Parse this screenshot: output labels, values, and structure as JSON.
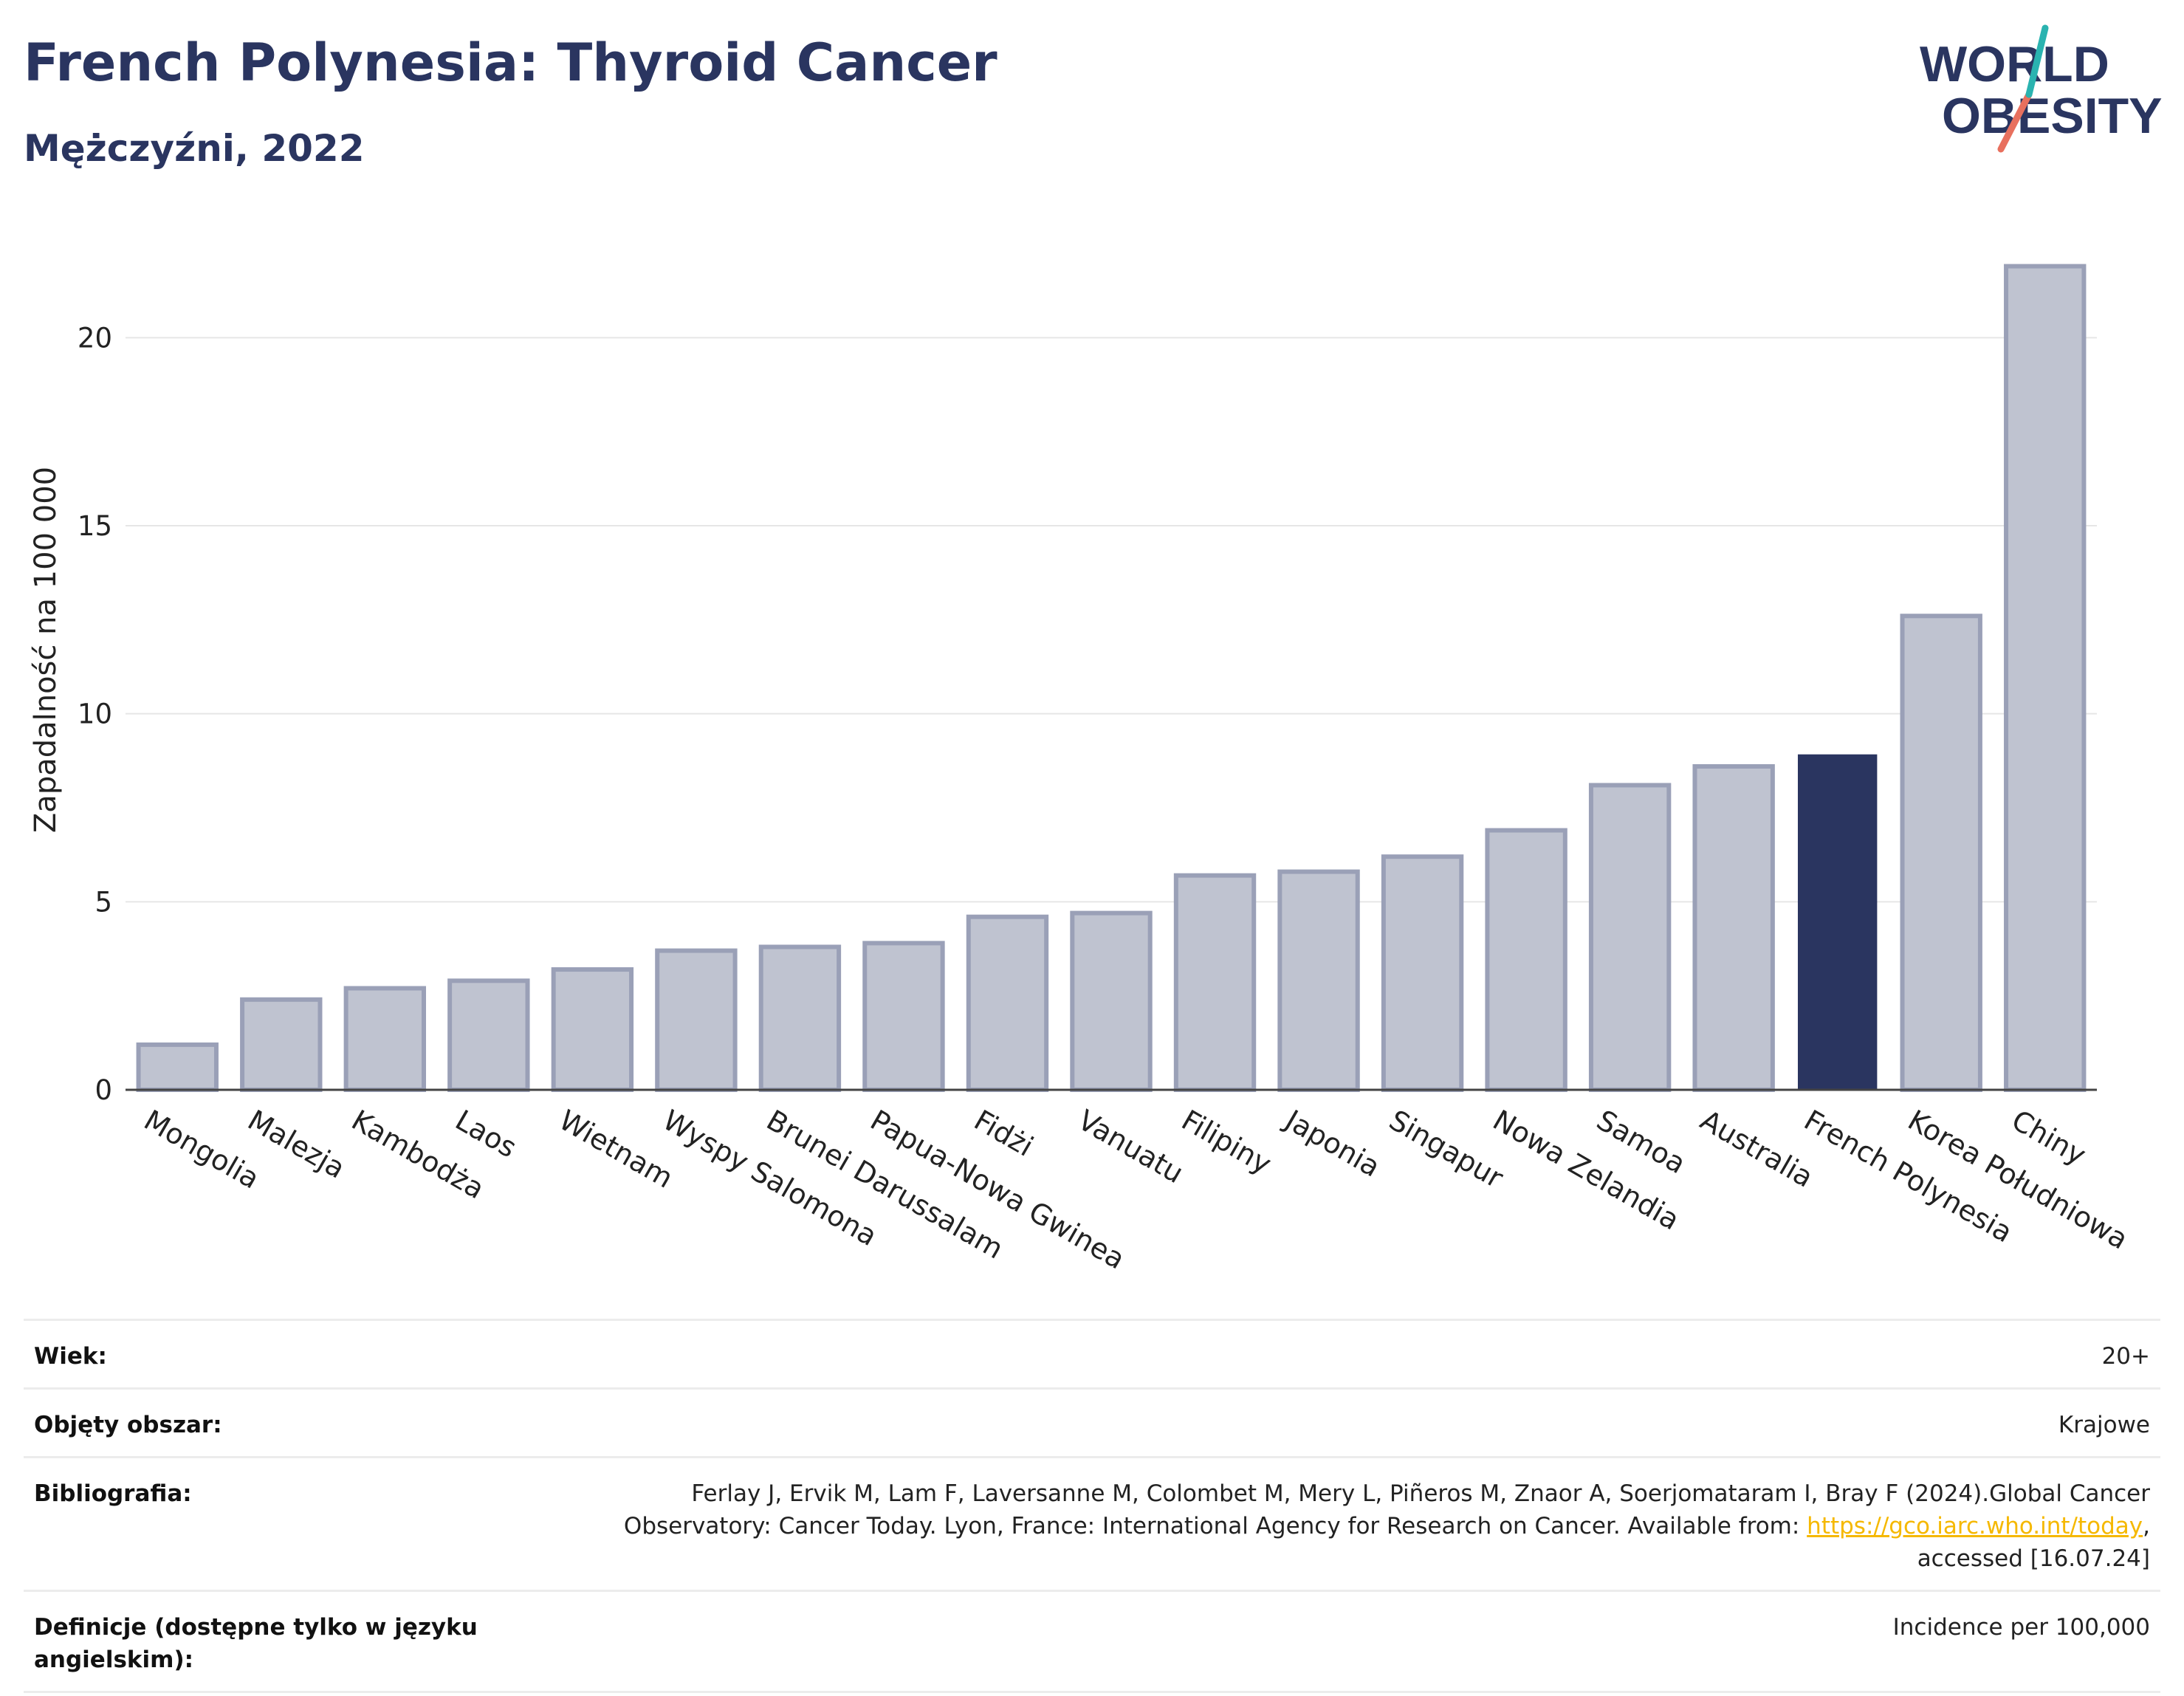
{
  "header": {
    "title": "French Polynesia: Thyroid Cancer",
    "subtitle": "Mężczyźni, 2022"
  },
  "logo": {
    "line1": "WORLD",
    "line2": "OBESITY"
  },
  "colors": {
    "highlight": "#2a3560",
    "bar_fill": "#bfc3d0",
    "bar_stroke": "#9aa0b7",
    "title": "#2a3560",
    "logo_teal": "#2ab3b0",
    "logo_coral": "#e8705e"
  },
  "chart_data": {
    "type": "bar",
    "ylabel": "Zapadalność na 100 000",
    "xlabel": "",
    "ylim": [
      0,
      22.5
    ],
    "yticks": [
      0,
      5,
      10,
      15,
      20
    ],
    "grid": true,
    "highlight_category": "French Polynesia",
    "categories": [
      "Mongolia",
      "Malezja",
      "Kambodża",
      "Laos",
      "Wietnam",
      "Wyspy Salomona",
      "Brunei Darussalam",
      "Papua-Nowa Gwinea",
      "Fidżi",
      "Vanuatu",
      "Filipiny",
      "Japonia",
      "Singapur",
      "Nowa Zelandia",
      "Samoa",
      "Australia",
      "French Polynesia",
      "Korea Południowa",
      "Chiny"
    ],
    "values": [
      1.2,
      2.4,
      2.7,
      2.9,
      3.2,
      3.7,
      3.8,
      3.9,
      4.6,
      4.7,
      5.7,
      5.8,
      6.2,
      6.9,
      8.1,
      8.6,
      8.9,
      12.6,
      21.9
    ]
  },
  "info": {
    "age_label": "Wiek:",
    "age_value": "20+",
    "area_label": "Objęty obszar:",
    "area_value": "Krajowe",
    "bib_label": "Bibliografia:",
    "bib_line1": "Ferlay J, Ervik M, Lam F, Laversanne M, Colombet M, Mery L, Piñeros M, Znaor A, Soerjomataram I, Bray F (2024).Global Cancer",
    "bib_line2_pre": "Observatory: Cancer Today. Lyon, France: International Agency for Research on Cancer. Available from: ",
    "bib_link": "https://gco.iarc.who.int/today",
    "bib_line2_post": ",",
    "bib_line3": "accessed [16.07.24]",
    "def_label": "Definicje (dostępne tylko w języku angielskim):",
    "def_value": "Incidence per 100,000"
  }
}
